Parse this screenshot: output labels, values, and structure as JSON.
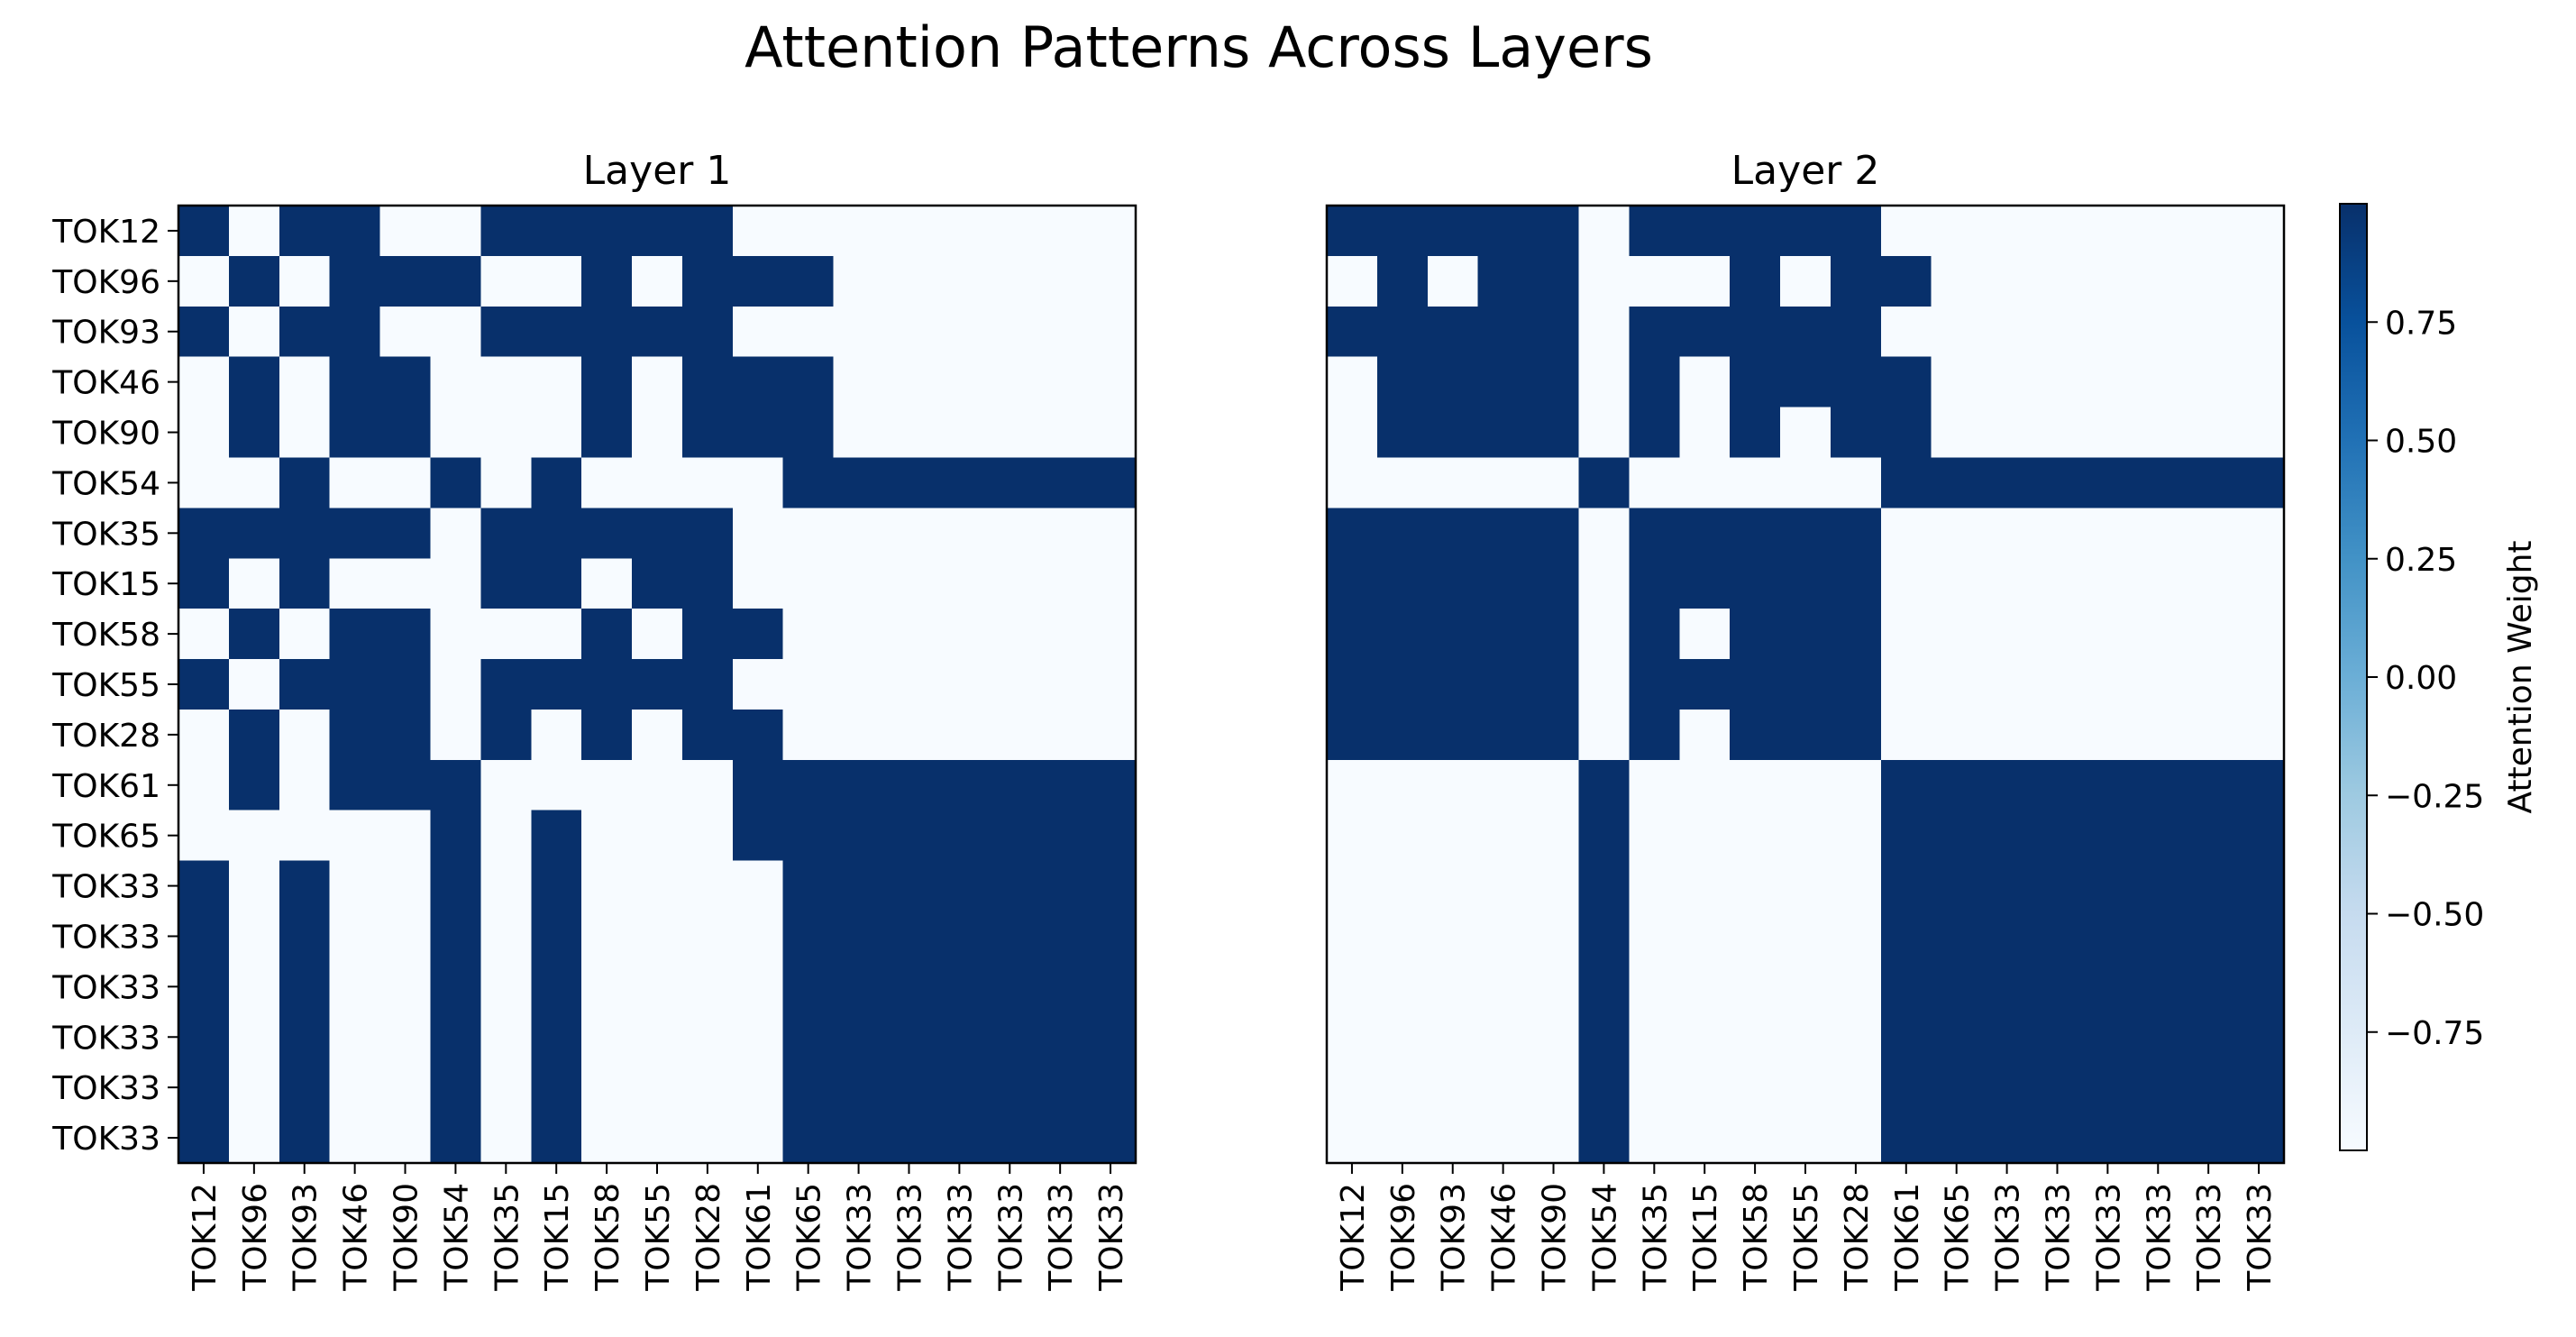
{
  "chart_data": {
    "type": "heatmap",
    "title": "Attention Patterns Across Layers",
    "colormap": "Blues",
    "colors": {
      "low": "#f7fbff",
      "high": "#08306b"
    },
    "tokens": [
      "TOK12",
      "TOK96",
      "TOK93",
      "TOK46",
      "TOK90",
      "TOK54",
      "TOK35",
      "TOK15",
      "TOK58",
      "TOK55",
      "TOK28",
      "TOK61",
      "TOK65",
      "TOK33",
      "TOK33",
      "TOK33",
      "TOK33",
      "TOK33",
      "TOK33"
    ],
    "colorbar": {
      "label": "Attention Weight",
      "range": [
        -1.0,
        1.0
      ],
      "ticks": [
        0.75,
        0.5,
        0.25,
        0.0,
        -0.25,
        -0.5,
        -0.75
      ],
      "tick_labels": [
        "0.75",
        "0.50",
        "0.25",
        "0.00",
        "−0.25",
        "−0.50",
        "−0.75"
      ]
    },
    "panels": [
      {
        "title": "Layer 1",
        "show_y_labels": true,
        "matrix": [
          [
            1,
            0,
            1,
            1,
            0,
            0,
            1,
            1,
            1,
            1,
            1,
            0,
            0,
            0,
            0,
            0,
            0,
            0,
            0
          ],
          [
            0,
            1,
            0,
            1,
            1,
            1,
            0,
            0,
            1,
            0,
            1,
            1,
            1,
            0,
            0,
            0,
            0,
            0,
            0
          ],
          [
            1,
            0,
            1,
            1,
            0,
            0,
            1,
            1,
            1,
            1,
            1,
            0,
            0,
            0,
            0,
            0,
            0,
            0,
            0
          ],
          [
            0,
            1,
            0,
            1,
            1,
            0,
            0,
            0,
            1,
            0,
            1,
            1,
            1,
            0,
            0,
            0,
            0,
            0,
            0
          ],
          [
            0,
            1,
            0,
            1,
            1,
            0,
            0,
            0,
            1,
            0,
            1,
            1,
            1,
            0,
            0,
            0,
            0,
            0,
            0
          ],
          [
            0,
            0,
            1,
            0,
            0,
            1,
            0,
            1,
            0,
            0,
            0,
            0,
            1,
            1,
            1,
            1,
            1,
            1,
            1
          ],
          [
            1,
            1,
            1,
            1,
            1,
            0,
            1,
            1,
            1,
            1,
            1,
            0,
            0,
            0,
            0,
            0,
            0,
            0,
            0
          ],
          [
            1,
            0,
            1,
            0,
            0,
            0,
            1,
            1,
            0,
            1,
            1,
            0,
            0,
            0,
            0,
            0,
            0,
            0,
            0
          ],
          [
            0,
            1,
            0,
            1,
            1,
            0,
            0,
            0,
            1,
            0,
            1,
            1,
            0,
            0,
            0,
            0,
            0,
            0,
            0
          ],
          [
            1,
            0,
            1,
            1,
            1,
            0,
            1,
            1,
            1,
            1,
            1,
            0,
            0,
            0,
            0,
            0,
            0,
            0,
            0
          ],
          [
            0,
            1,
            0,
            1,
            1,
            0,
            1,
            0,
            1,
            0,
            1,
            1,
            0,
            0,
            0,
            0,
            0,
            0,
            0
          ],
          [
            0,
            1,
            0,
            1,
            1,
            1,
            0,
            0,
            0,
            0,
            0,
            1,
            1,
            1,
            1,
            1,
            1,
            1,
            1
          ],
          [
            0,
            0,
            0,
            0,
            0,
            1,
            0,
            1,
            0,
            0,
            0,
            1,
            1,
            1,
            1,
            1,
            1,
            1,
            1
          ],
          [
            1,
            0,
            1,
            0,
            0,
            1,
            0,
            1,
            0,
            0,
            0,
            0,
            1,
            1,
            1,
            1,
            1,
            1,
            1
          ],
          [
            1,
            0,
            1,
            0,
            0,
            1,
            0,
            1,
            0,
            0,
            0,
            0,
            1,
            1,
            1,
            1,
            1,
            1,
            1
          ],
          [
            1,
            0,
            1,
            0,
            0,
            1,
            0,
            1,
            0,
            0,
            0,
            0,
            1,
            1,
            1,
            1,
            1,
            1,
            1
          ],
          [
            1,
            0,
            1,
            0,
            0,
            1,
            0,
            1,
            0,
            0,
            0,
            0,
            1,
            1,
            1,
            1,
            1,
            1,
            1
          ],
          [
            1,
            0,
            1,
            0,
            0,
            1,
            0,
            1,
            0,
            0,
            0,
            0,
            1,
            1,
            1,
            1,
            1,
            1,
            1
          ],
          [
            1,
            0,
            1,
            0,
            0,
            1,
            0,
            1,
            0,
            0,
            0,
            0,
            1,
            1,
            1,
            1,
            1,
            1,
            1
          ]
        ]
      },
      {
        "title": "Layer 2",
        "show_y_labels": false,
        "matrix": [
          [
            1,
            1,
            1,
            1,
            1,
            0,
            1,
            1,
            1,
            1,
            1,
            0,
            0,
            0,
            0,
            0,
            0,
            0,
            0
          ],
          [
            0,
            1,
            0,
            1,
            1,
            0,
            0,
            0,
            1,
            0,
            1,
            1,
            0,
            0,
            0,
            0,
            0,
            0,
            0
          ],
          [
            1,
            1,
            1,
            1,
            1,
            0,
            1,
            1,
            1,
            1,
            1,
            0,
            0,
            0,
            0,
            0,
            0,
            0,
            0
          ],
          [
            0,
            1,
            1,
            1,
            1,
            0,
            1,
            0,
            1,
            1,
            1,
            1,
            0,
            0,
            0,
            0,
            0,
            0,
            0
          ],
          [
            0,
            1,
            1,
            1,
            1,
            0,
            1,
            0,
            1,
            0,
            1,
            1,
            0,
            0,
            0,
            0,
            0,
            0,
            0
          ],
          [
            0,
            0,
            0,
            0,
            0,
            1,
            0,
            0,
            0,
            0,
            0,
            1,
            1,
            1,
            1,
            1,
            1,
            1,
            1
          ],
          [
            1,
            1,
            1,
            1,
            1,
            0,
            1,
            1,
            1,
            1,
            1,
            0,
            0,
            0,
            0,
            0,
            0,
            0,
            0
          ],
          [
            1,
            1,
            1,
            1,
            1,
            0,
            1,
            1,
            1,
            1,
            1,
            0,
            0,
            0,
            0,
            0,
            0,
            0,
            0
          ],
          [
            1,
            1,
            1,
            1,
            1,
            0,
            1,
            0,
            1,
            1,
            1,
            0,
            0,
            0,
            0,
            0,
            0,
            0,
            0
          ],
          [
            1,
            1,
            1,
            1,
            1,
            0,
            1,
            1,
            1,
            1,
            1,
            0,
            0,
            0,
            0,
            0,
            0,
            0,
            0
          ],
          [
            1,
            1,
            1,
            1,
            1,
            0,
            1,
            0,
            1,
            1,
            1,
            0,
            0,
            0,
            0,
            0,
            0,
            0,
            0
          ],
          [
            0,
            0,
            0,
            0,
            0,
            1,
            0,
            0,
            0,
            0,
            0,
            1,
            1,
            1,
            1,
            1,
            1,
            1,
            1
          ],
          [
            0,
            0,
            0,
            0,
            0,
            1,
            0,
            0,
            0,
            0,
            0,
            1,
            1,
            1,
            1,
            1,
            1,
            1,
            1
          ],
          [
            0,
            0,
            0,
            0,
            0,
            1,
            0,
            0,
            0,
            0,
            0,
            1,
            1,
            1,
            1,
            1,
            1,
            1,
            1
          ],
          [
            0,
            0,
            0,
            0,
            0,
            1,
            0,
            0,
            0,
            0,
            0,
            1,
            1,
            1,
            1,
            1,
            1,
            1,
            1
          ],
          [
            0,
            0,
            0,
            0,
            0,
            1,
            0,
            0,
            0,
            0,
            0,
            1,
            1,
            1,
            1,
            1,
            1,
            1,
            1
          ],
          [
            0,
            0,
            0,
            0,
            0,
            1,
            0,
            0,
            0,
            0,
            0,
            1,
            1,
            1,
            1,
            1,
            1,
            1,
            1
          ],
          [
            0,
            0,
            0,
            0,
            0,
            1,
            0,
            0,
            0,
            0,
            0,
            1,
            1,
            1,
            1,
            1,
            1,
            1,
            1
          ],
          [
            0,
            0,
            0,
            0,
            0,
            1,
            0,
            0,
            0,
            0,
            0,
            1,
            1,
            1,
            1,
            1,
            1,
            1,
            1
          ]
        ]
      }
    ]
  }
}
